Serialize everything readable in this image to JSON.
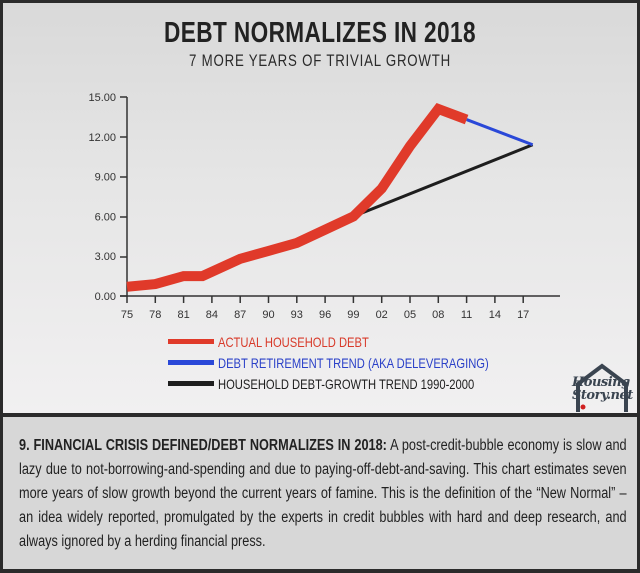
{
  "header": {
    "title": "DEBT NORMALIZES IN 2018",
    "subtitle": "7 MORE YEARS OF TRIVIAL GROWTH"
  },
  "chart_data": {
    "type": "line",
    "title": "DEBT NORMALIZES IN 2018",
    "subtitle": "7 MORE YEARS OF TRIVIAL GROWTH",
    "xlabel": "",
    "ylabel": "",
    "ylim": [
      0,
      15
    ],
    "y_ticks": [
      "0.00",
      "3.00",
      "6.00",
      "9.00",
      "12.00",
      "15.00"
    ],
    "x_ticks": [
      "75",
      "78",
      "81",
      "84",
      "87",
      "90",
      "93",
      "96",
      "99",
      "02",
      "05",
      "08",
      "11",
      "14",
      "17"
    ],
    "grid": false,
    "legend_position": "bottom",
    "series": [
      {
        "name": "ACTUAL HOUSEHOLD DEBT",
        "color": "#e03a2a",
        "x": [
          1975,
          1978,
          1981,
          1983,
          1987,
          1990,
          1993,
          1996,
          1999,
          2002,
          2005,
          2008,
          2011
        ],
        "values": [
          0.7,
          0.9,
          1.5,
          1.5,
          2.8,
          3.4,
          4.0,
          5.0,
          6.0,
          8.1,
          11.3,
          14.1,
          13.3
        ]
      },
      {
        "name": "DEBT RETIREMENT TREND (AKA DELEVERAGING)",
        "color": "#2a48d8",
        "x": [
          2011,
          2018
        ],
        "values": [
          13.3,
          11.4
        ]
      },
      {
        "name": "HOUSEHOLD DEBT-GROWTH TREND 1990-2000",
        "color": "#1e1e1e",
        "x": [
          1999,
          2018
        ],
        "values": [
          6.0,
          11.4
        ]
      }
    ]
  },
  "legend": {
    "items": [
      {
        "label": "ACTUAL HOUSEHOLD DEBT",
        "color": "#e03a2a"
      },
      {
        "label": "DEBT RETIREMENT TREND (AKA DELEVERAGING)",
        "color": "#2a48d8"
      },
      {
        "label": "HOUSEHOLD DEBT-GROWTH TREND 1990-2000",
        "color": "#1e1e1e"
      }
    ]
  },
  "logo": {
    "line1": "Housing",
    "line2": "Story.net"
  },
  "caption": {
    "heading": "9. FINANCIAL CRISIS DEFINED/DEBT NORMALIZES IN 2018:",
    "body": " A post-credit-bubble economy is slow and lazy due to not-borrowing-and-spending and due to paying-off-debt-and-saving. This chart estimates seven more years of slow growth beyond the current years of famine. This is the definition of the “New Normal” – an idea widely reported, promulgated by the experts in credit bubbles with hard and deep research, and always ignored by a herding financial press."
  }
}
